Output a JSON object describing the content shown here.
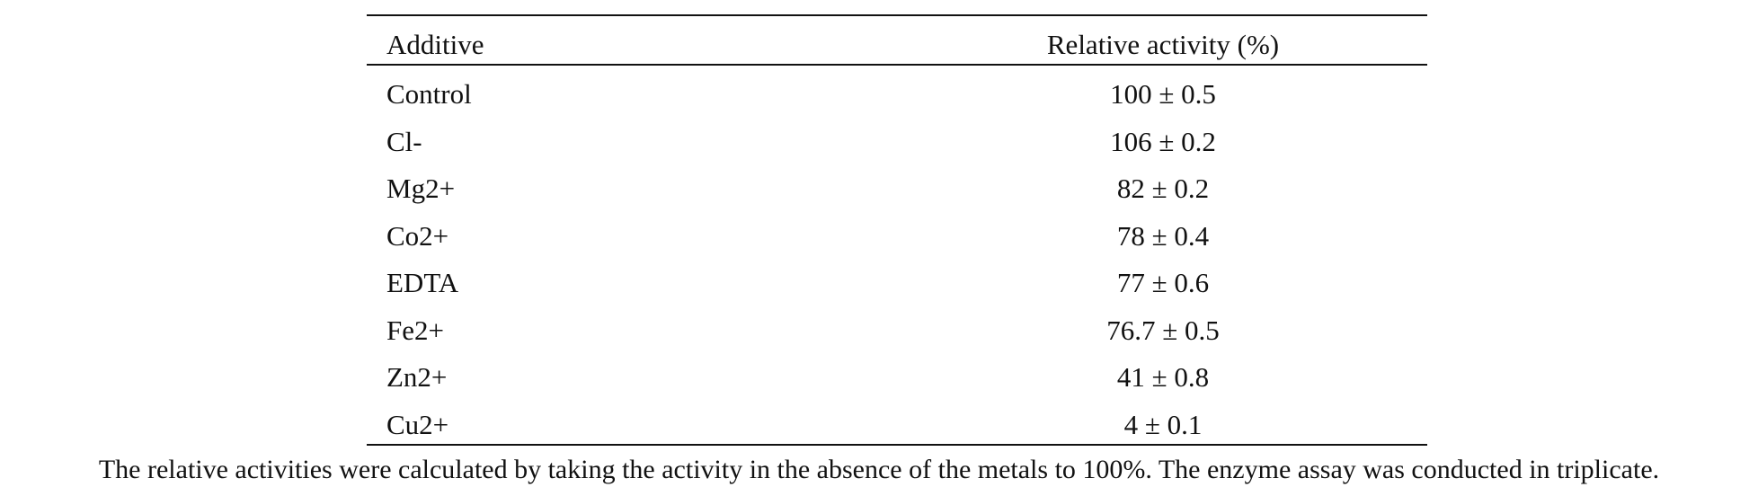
{
  "table": {
    "headers": [
      "Additive",
      "Relative activity (%)"
    ],
    "rows": [
      [
        "Control",
        "100 ± 0.5"
      ],
      [
        "Cl-",
        "106 ± 0.2"
      ],
      [
        "Mg2+",
        "82 ± 0.2"
      ],
      [
        "Co2+",
        "78 ± 0.4"
      ],
      [
        "EDTA",
        "77 ± 0.6"
      ],
      [
        "Fe2+",
        "76.7 ± 0.5"
      ],
      [
        "Zn2+",
        "41 ± 0.8"
      ],
      [
        "Cu2+",
        "4 ± 0.1"
      ]
    ]
  },
  "footnote": "The relative activities were calculated by taking the activity in the absence of the metals to 100%. The enzyme assay was conducted in triplicate."
}
